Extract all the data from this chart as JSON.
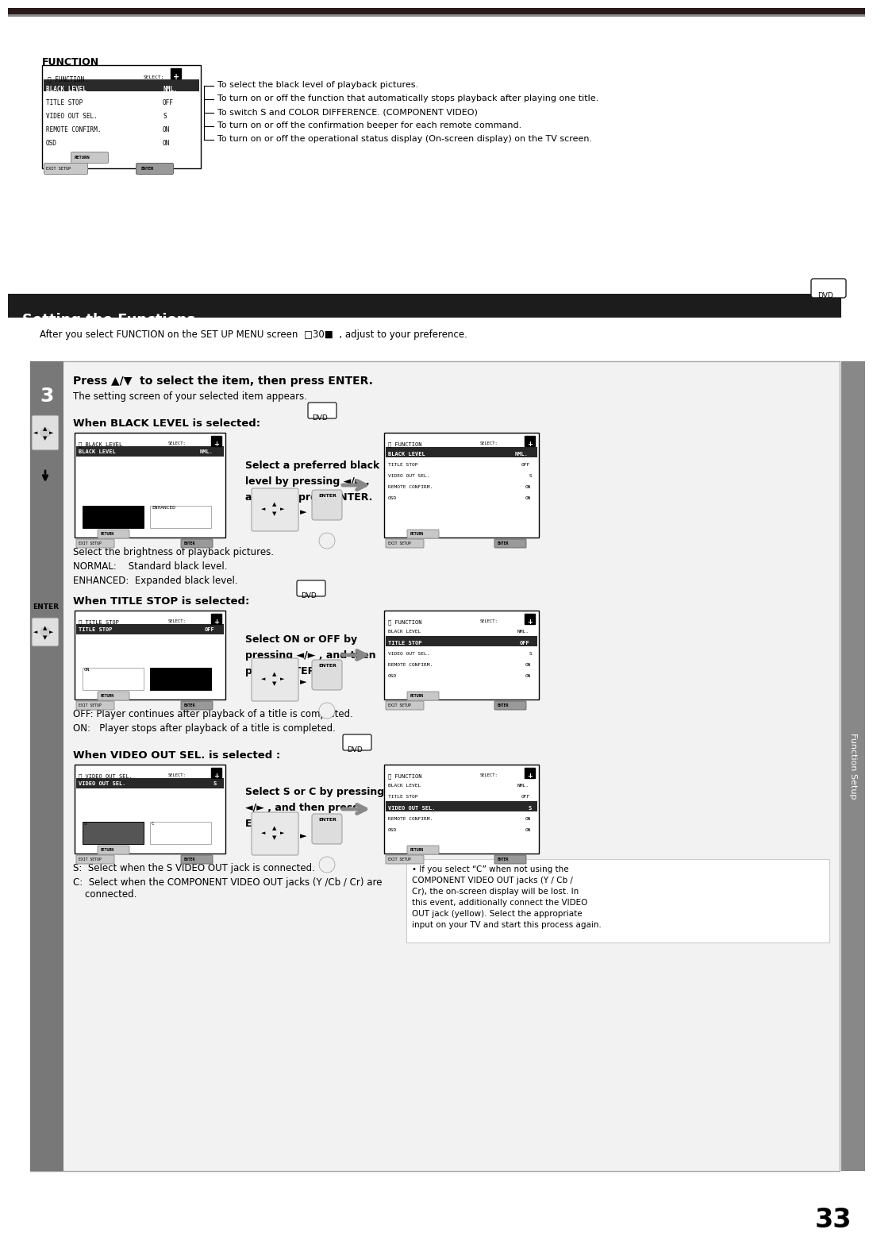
{
  "page_number": "33",
  "bg_color": "#ffffff",
  "top_bar_color": "#2a2020",
  "section_bar_color": "#1c1c1c",
  "section_title": "Setting the Functions",
  "section_title_color": "#ffffff",
  "function_heading": "FUNCTION",
  "intro_text": "After you select FUNCTION on the SET UP MENU screen  30  , adjust to your preference.",
  "step3_title": "Press ▲/▼  to select the item, then press ENTER.",
  "step3_sub": "The setting screen of your selected item appears.",
  "black_level_heading": "When BLACK LEVEL is selected:",
  "black_level_instruction": "Select a preferred black\nlevel by pressing ◄/► ,\nand then press ENTER.",
  "black_level_desc1": "Select the brightness of playback pictures.",
  "black_level_desc2": "NORMAL:    Standard black level.",
  "black_level_desc3": "ENHANCED:  Expanded black level.",
  "title_stop_heading": "When TITLE STOP is selected:",
  "title_stop_instruction": "Select ON or OFF by\npressing ◄/► , and then\npress ENTER.",
  "title_stop_desc1": "OFF: Player continues after playback of a title is completed.",
  "title_stop_desc2": "ON:   Player stops after playback of a title is completed.",
  "video_out_heading": "When VIDEO OUT SEL. is selected :",
  "video_out_instruction": "Select S or C by pressing\n◄/► , and then press\nENTER.",
  "video_out_desc1": "S:  Select when the S VIDEO OUT jack is connected.",
  "video_out_desc2": "C:  Select when the COMPONENT VIDEO OUT jacks (Y /Cb / Cr) are\n    connected.",
  "video_out_note": "• If you select “C” when not using the\nCOMPONENT VIDEO OUT jacks (Y / Cb /\nCr), the on-screen display will be lost. In\nthis event, additionally connect the VIDEO\nOUT jack (yellow). Select the appropriate\ninput on your TV and start this process again.",
  "function_sidebar_label": "Function Setup",
  "top_desc1": "To select the black level of playback pictures.",
  "top_desc2": "To turn on or off the function that automatically stops playback after playing one title.",
  "top_desc3": "To switch S and COLOR DIFFERENCE. (COMPONENT VIDEO)",
  "top_desc4": "To turn on or off the confirmation beeper for each remote command.",
  "top_desc5": "To turn on or off the operational status display (On-screen display) on the TV screen."
}
